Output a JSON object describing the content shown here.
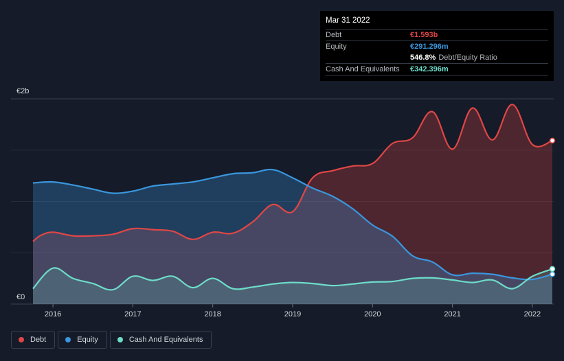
{
  "tooltip": {
    "date": "Mar 31 2022",
    "debt_label": "Debt",
    "debt_value": "€1.593b",
    "equity_label": "Equity",
    "equity_value": "€291.296m",
    "ratio_value": "546.8%",
    "ratio_label": "Debt/Equity Ratio",
    "cash_label": "Cash And Equivalents",
    "cash_value": "€342.396m"
  },
  "legend": {
    "debt": "Debt",
    "equity": "Equity",
    "cash": "Cash And Equivalents"
  },
  "colors": {
    "background": "#151b28",
    "debt": "#e04646",
    "equity": "#3a96dd",
    "cash": "#6ddcc9",
    "grid": "#2a303d"
  },
  "chart_data": {
    "type": "area",
    "title": "",
    "xlabel": "",
    "ylabel": "",
    "ylim": [
      0,
      2000
    ],
    "y_unit": "€m",
    "xlim": [
      2015.75,
      2022.25
    ],
    "y_ticks": [
      {
        "value": 2000,
        "label": "€2b"
      },
      {
        "value": 0,
        "label": "€0"
      }
    ],
    "x_ticks": [
      {
        "value": 2016,
        "label": "2016"
      },
      {
        "value": 2017,
        "label": "2017"
      },
      {
        "value": 2018,
        "label": "2018"
      },
      {
        "value": 2019,
        "label": "2019"
      },
      {
        "value": 2020,
        "label": "2020"
      },
      {
        "value": 2021,
        "label": "2021"
      },
      {
        "value": 2022,
        "label": "2022"
      }
    ],
    "series": [
      {
        "name": "Debt",
        "color": "#e04646",
        "points": [
          [
            2015.75,
            610
          ],
          [
            2015.85,
            670
          ],
          [
            2016.0,
            700
          ],
          [
            2016.25,
            665
          ],
          [
            2016.5,
            665
          ],
          [
            2016.75,
            680
          ],
          [
            2017.0,
            735
          ],
          [
            2017.25,
            725
          ],
          [
            2017.5,
            710
          ],
          [
            2017.75,
            630
          ],
          [
            2018.0,
            700
          ],
          [
            2018.25,
            690
          ],
          [
            2018.5,
            800
          ],
          [
            2018.75,
            970
          ],
          [
            2019.0,
            900
          ],
          [
            2019.25,
            1230
          ],
          [
            2019.5,
            1300
          ],
          [
            2019.75,
            1345
          ],
          [
            2020.0,
            1370
          ],
          [
            2020.25,
            1565
          ],
          [
            2020.5,
            1620
          ],
          [
            2020.75,
            1875
          ],
          [
            2021.0,
            1510
          ],
          [
            2021.25,
            1910
          ],
          [
            2021.5,
            1600
          ],
          [
            2021.75,
            1945
          ],
          [
            2022.0,
            1555
          ],
          [
            2022.25,
            1593
          ]
        ]
      },
      {
        "name": "Equity",
        "color": "#3a96dd",
        "points": [
          [
            2015.75,
            1180
          ],
          [
            2016.0,
            1190
          ],
          [
            2016.25,
            1160
          ],
          [
            2016.5,
            1120
          ],
          [
            2016.75,
            1080
          ],
          [
            2017.0,
            1100
          ],
          [
            2017.25,
            1150
          ],
          [
            2017.5,
            1170
          ],
          [
            2017.75,
            1190
          ],
          [
            2018.0,
            1230
          ],
          [
            2018.25,
            1270
          ],
          [
            2018.5,
            1280
          ],
          [
            2018.75,
            1310
          ],
          [
            2019.0,
            1230
          ],
          [
            2019.25,
            1130
          ],
          [
            2019.5,
            1050
          ],
          [
            2019.75,
            930
          ],
          [
            2020.0,
            770
          ],
          [
            2020.25,
            660
          ],
          [
            2020.5,
            470
          ],
          [
            2020.75,
            410
          ],
          [
            2021.0,
            285
          ],
          [
            2021.25,
            300
          ],
          [
            2021.5,
            290
          ],
          [
            2021.75,
            255
          ],
          [
            2022.0,
            240
          ],
          [
            2022.25,
            291
          ]
        ]
      },
      {
        "name": "Cash And Equivalents",
        "color": "#6ddcc9",
        "points": [
          [
            2015.75,
            150
          ],
          [
            2016.0,
            350
          ],
          [
            2016.25,
            250
          ],
          [
            2016.5,
            200
          ],
          [
            2016.75,
            140
          ],
          [
            2017.0,
            270
          ],
          [
            2017.25,
            230
          ],
          [
            2017.5,
            270
          ],
          [
            2017.75,
            160
          ],
          [
            2018.0,
            250
          ],
          [
            2018.25,
            150
          ],
          [
            2018.5,
            165
          ],
          [
            2018.75,
            195
          ],
          [
            2019.0,
            210
          ],
          [
            2019.25,
            200
          ],
          [
            2019.5,
            180
          ],
          [
            2019.75,
            195
          ],
          [
            2020.0,
            215
          ],
          [
            2020.25,
            220
          ],
          [
            2020.5,
            250
          ],
          [
            2020.75,
            255
          ],
          [
            2021.0,
            235
          ],
          [
            2021.25,
            210
          ],
          [
            2021.5,
            235
          ],
          [
            2021.75,
            150
          ],
          [
            2022.0,
            270
          ],
          [
            2022.25,
            342
          ]
        ]
      }
    ]
  }
}
